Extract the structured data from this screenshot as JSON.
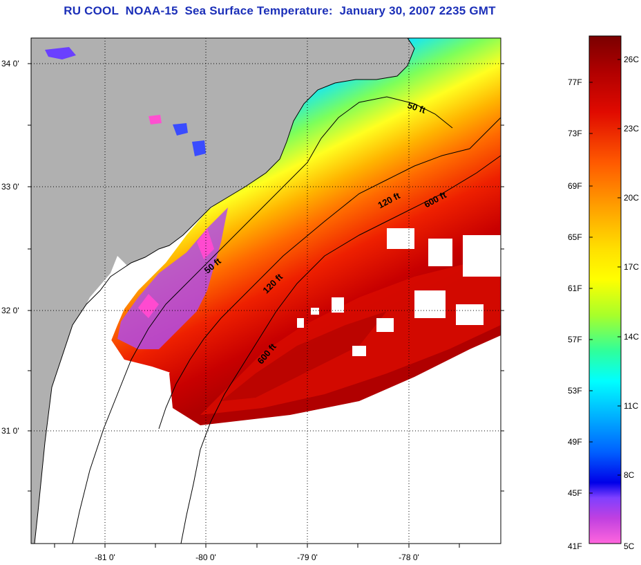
{
  "title": "RU COOL  NOAA-15  Sea Surface Temperature:  January 30, 2007 2235 GMT",
  "map": {
    "lat_labels": [
      "34 0'",
      "33 0'",
      "32 0'",
      "31 0'"
    ],
    "lon_labels": [
      "-81 0'",
      "-80 0'",
      "-79 0'",
      "-78 0'"
    ],
    "depth_contours": [
      "50 ft",
      "50 ft",
      "120 ft",
      "120 ft",
      "600 ft",
      "600 ft"
    ],
    "colors": {
      "land": "#b0b0b0",
      "no_data": "#ffffff",
      "frame": "#000000"
    }
  },
  "colorbar": {
    "fahrenheit_labels": [
      "77F",
      "73F",
      "69F",
      "65F",
      "61F",
      "57F",
      "53F",
      "49F",
      "45F",
      "41F"
    ],
    "celsius_labels": [
      "26C",
      "23C",
      "20C",
      "17C",
      "14C",
      "11C",
      "8C",
      "5C"
    ],
    "range_f": [
      41,
      80
    ],
    "range_c": [
      5,
      27
    ],
    "gradient": [
      "#7a0000",
      "#d40000",
      "#ff3a00",
      "#ff8800",
      "#ffd200",
      "#ffff00",
      "#a0ff20",
      "#20ffa0",
      "#00ffff",
      "#00a8ff",
      "#0050ff",
      "#0000e8",
      "#8000ff",
      "#ff30c0",
      "#ff66dd"
    ]
  }
}
